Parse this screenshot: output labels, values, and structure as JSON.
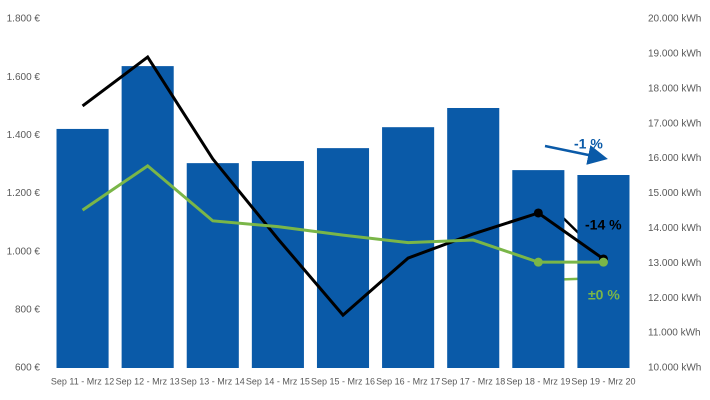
{
  "chart_data": {
    "type": "bar-line",
    "categories": [
      "Sep 11 - Mrz 12",
      "Sep 12 - Mrz 13",
      "Sep 13 - Mrz 14",
      "Sep 14 - Mrz 15",
      "Sep 15 - Mrz 16",
      "Sep 16 - Mrz 17",
      "Sep 17 - Mrz 18",
      "Sep 18 - Mrz 19",
      "Sep 19 - Mrz 20"
    ],
    "series": [
      {
        "type": "bar",
        "axis": "y2",
        "color": "#0a5aa8",
        "values": [
          16850,
          18650,
          15870,
          15930,
          16300,
          16900,
          17450,
          15670,
          15530
        ]
      },
      {
        "type": "line",
        "color": "#000000",
        "values": [
          1501,
          1669,
          1319,
          1044,
          782,
          978,
          1061,
          1133,
          975
        ]
      },
      {
        "type": "line",
        "color": "#7ab648",
        "values": [
          1143,
          1295,
          1106,
          1086,
          1057,
          1031,
          1040,
          964,
          964
        ]
      }
    ],
    "ylim": [
      600,
      1800
    ],
    "yticks": [
      {
        "value": 600,
        "label": "600 €"
      },
      {
        "value": 800,
        "label": "800 €"
      },
      {
        "value": 1000,
        "label": "1.000 €"
      },
      {
        "value": 1200,
        "label": "1.200 €"
      },
      {
        "value": 1400,
        "label": "1.400 €"
      },
      {
        "value": 1600,
        "label": "1.600 €"
      },
      {
        "value": 1800,
        "label": "1.800 €"
      }
    ],
    "y2lim": [
      10000,
      20000
    ],
    "y2ticks": [
      {
        "value": 10000,
        "label": "10.000 kWh"
      },
      {
        "value": 11000,
        "label": "11.000 kWh"
      },
      {
        "value": 12000,
        "label": "12.000 kWh"
      },
      {
        "value": 13000,
        "label": "13.000 kWh"
      },
      {
        "value": 14000,
        "label": "14.000 kWh"
      },
      {
        "value": 15000,
        "label": "15.000 kWh"
      },
      {
        "value": 16000,
        "label": "16.000 kWh"
      },
      {
        "value": 17000,
        "label": "17.000 kWh"
      },
      {
        "value": 18000,
        "label": "18.000 kWh"
      },
      {
        "value": 19000,
        "label": "19.000 kWh"
      },
      {
        "value": 20000,
        "label": "20.000 kWh"
      }
    ],
    "grid": false,
    "annotations": [
      {
        "text": "-1 %",
        "color": "#0a5aa8"
      },
      {
        "text": "-14 %",
        "color": "#000000"
      },
      {
        "text": "±0 %",
        "color": "#7ab648"
      }
    ]
  }
}
